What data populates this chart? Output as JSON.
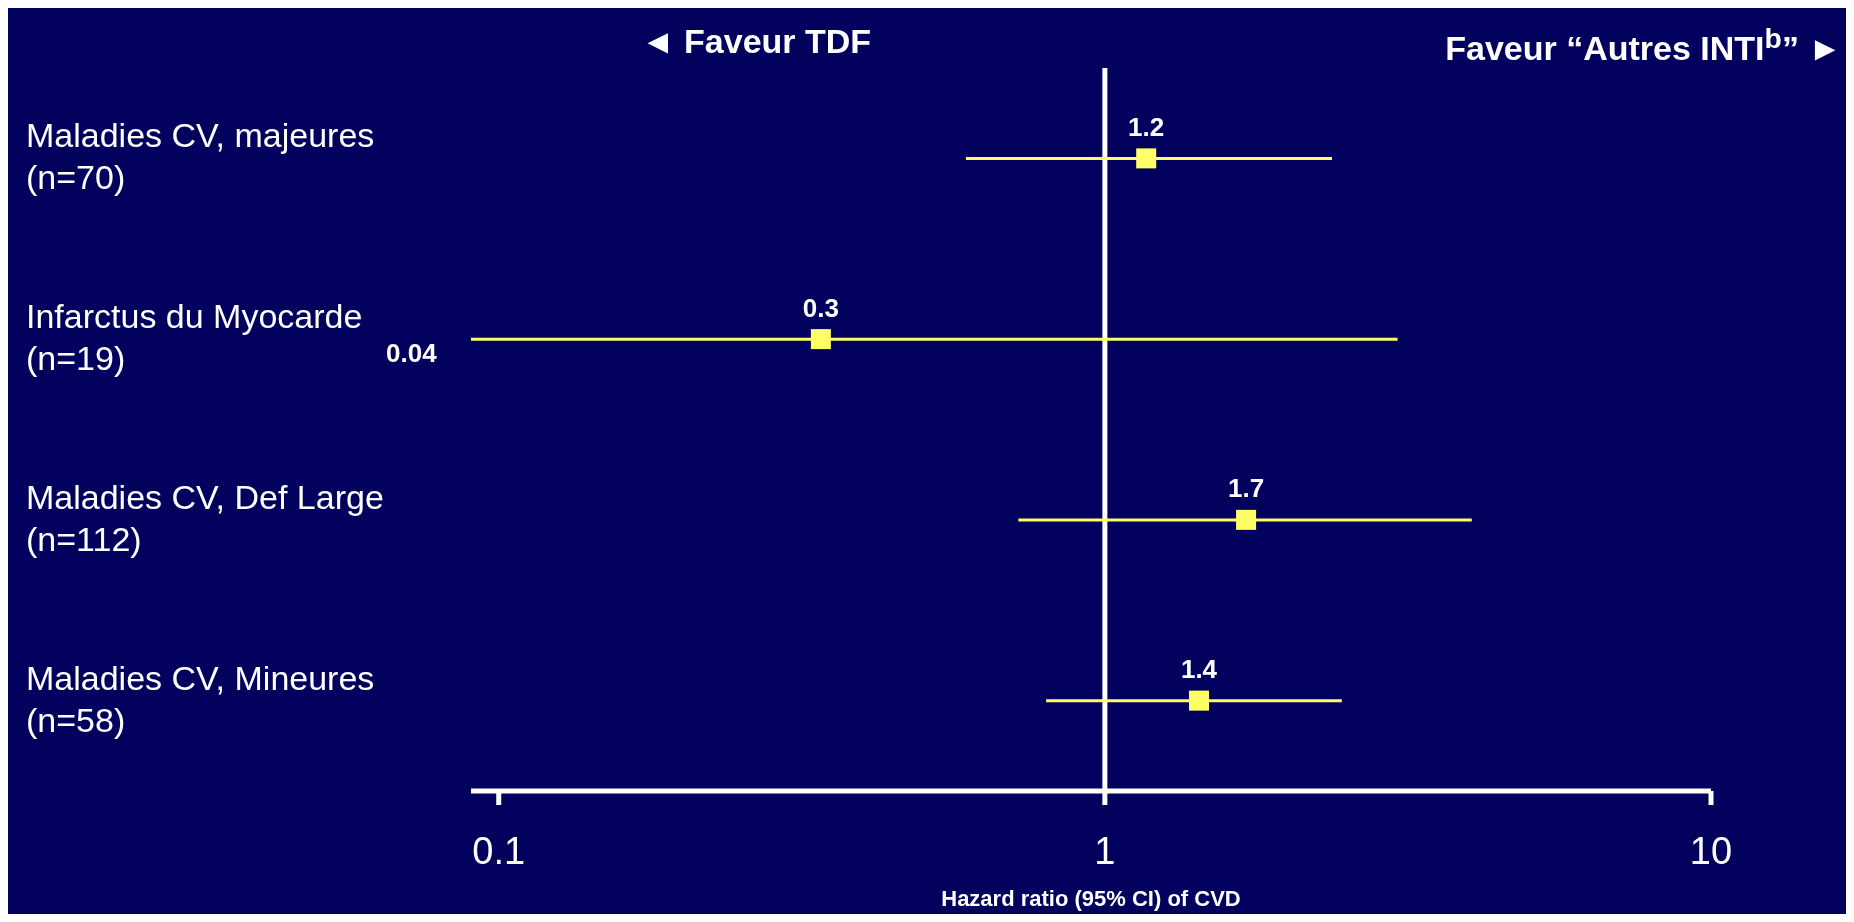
{
  "chart_data": {
    "type": "scatter",
    "orientation": "horizontal",
    "xlabel": "Hazard ratio (95% CI) of CVD",
    "categories": [
      "Maladies CV, majeures\n(n=70)",
      "Infarctus du Myocarde\n(n=19)",
      "Maladies CV, Def Large\n(n=112)",
      "Maladies CV, Mineures\n(n=58)"
    ],
    "values": [
      1.17,
      0.34,
      1.71,
      1.43
    ],
    "errors": [
      [
        0.59,
        2.37
      ],
      [
        0.09,
        3.04
      ],
      [
        0.72,
        4.03
      ],
      [
        0.8,
        2.46
      ]
    ],
    "value_labels": [
      "1.2",
      "0.3",
      "1.7",
      "1.4"
    ],
    "color": "#ffff66",
    "marker": "square",
    "xlim": [
      0.09,
      10
    ],
    "xticks": [
      0.1,
      1,
      10
    ],
    "log": "x",
    "ref_lines": [
      {
        "axis": "x",
        "value": 1,
        "color": "#ffffff"
      }
    ],
    "annotations": [
      "◄ Faveur TDF",
      "Faveur “Autres INTI$^{b}$” ►",
      "0.04"
    ]
  }
}
